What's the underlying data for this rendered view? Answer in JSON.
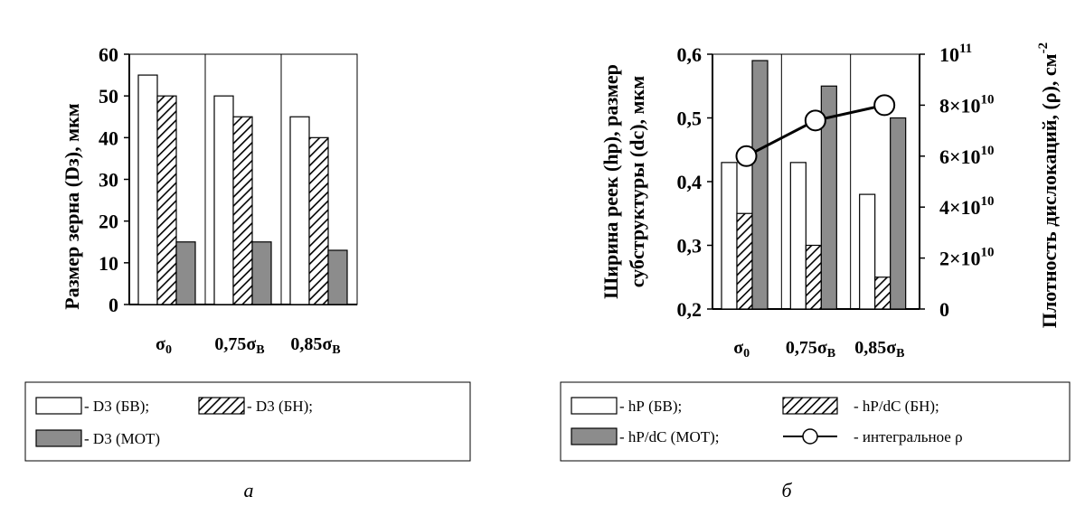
{
  "chart_data": [
    {
      "type": "bar",
      "panel_label": "а",
      "ylabel": "Размер зерна (Dз), мкм",
      "ylim": [
        0,
        60
      ],
      "yticks": [
        "0",
        "10",
        "20",
        "30",
        "40",
        "50",
        "60"
      ],
      "categories": [
        {
          "main": "σ",
          "sub": "0"
        },
        {
          "main": "0,75σ",
          "sub": "В"
        },
        {
          "main": "0,85σ",
          "sub": "В"
        }
      ],
      "series": [
        {
          "name": "- D3 (БВ);",
          "style": "white",
          "values": [
            55,
            50,
            45
          ]
        },
        {
          "name": "- D3 (БН);",
          "style": "hatched",
          "values": [
            50,
            45,
            40
          ]
        },
        {
          "name": "- D3 (MОТ)",
          "style": "gray",
          "values": [
            15,
            15,
            13
          ]
        }
      ],
      "legend_placement": "bottom",
      "grid": false
    },
    {
      "type": "bar",
      "panel_label": "б",
      "ylabel_lines": [
        "Ширина реек (hр), размер",
        "субструктуры (dc), мкм"
      ],
      "ylabel2": "Плотность дислокаций, (ρ), см",
      "ylabel2_sup": "-2",
      "ylim": [
        0.2,
        0.6
      ],
      "yticks": [
        "0,2",
        "0,3",
        "0,4",
        "0,5",
        "0,6"
      ],
      "y2lim": [
        0,
        100000000000
      ],
      "y2ticks": [
        {
          "base": "0",
          "exp": ""
        },
        {
          "base": "2×10",
          "exp": "10"
        },
        {
          "base": "4×10",
          "exp": "10"
        },
        {
          "base": "6×10",
          "exp": "10"
        },
        {
          "base": "8×10",
          "exp": "10"
        },
        {
          "base": "10",
          "exp": "11"
        }
      ],
      "categories": [
        {
          "main": "σ",
          "sub": "0"
        },
        {
          "main": "0,75σ",
          "sub": "В"
        },
        {
          "main": "0,85σ",
          "sub": "В"
        }
      ],
      "series": [
        {
          "name": "- hР (БВ);",
          "style": "white",
          "values": [
            0.43,
            0.43,
            0.38
          ]
        },
        {
          "name": "- hР/dС (БН);",
          "style": "hatched",
          "values": [
            0.35,
            0.3,
            0.25
          ]
        },
        {
          "name": "- hР/dС (MОТ);",
          "style": "gray",
          "values": [
            0.59,
            0.55,
            0.5
          ]
        },
        {
          "name": "- интегральное ρ",
          "style": "line-marker",
          "axis": "right",
          "values": [
            60000000000,
            74000000000,
            80000000000
          ]
        }
      ],
      "legend_placement": "bottom",
      "grid": false
    }
  ]
}
